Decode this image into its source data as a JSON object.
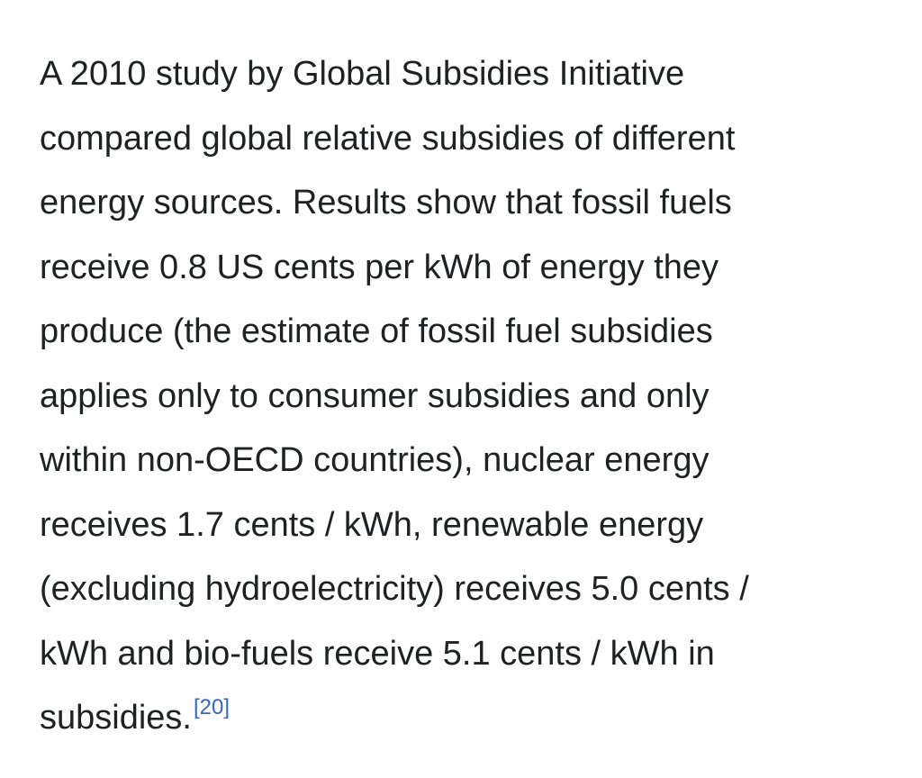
{
  "article": {
    "lines": [
      "A 2010 study by Global Subsidies Initiative",
      "compared global relative subsidies of different",
      "energy sources. Results show that fossil fuels",
      "receive 0.8 US cents per kWh of energy they",
      "produce (the estimate of fossil fuel subsidies",
      "applies only to consumer subsidies and only",
      "within non-OECD countries), nuclear energy",
      "receives 1.7 cents / kWh, renewable energy",
      "(excluding hydroelectricity) receives 5.0 cents /",
      "kWh and bio-fuels receive 5.1 cents / kWh in",
      "subsidies."
    ],
    "citation": "[20]"
  },
  "colors": {
    "text": "#202122",
    "link": "#3366cc",
    "background": "#ffffff"
  }
}
